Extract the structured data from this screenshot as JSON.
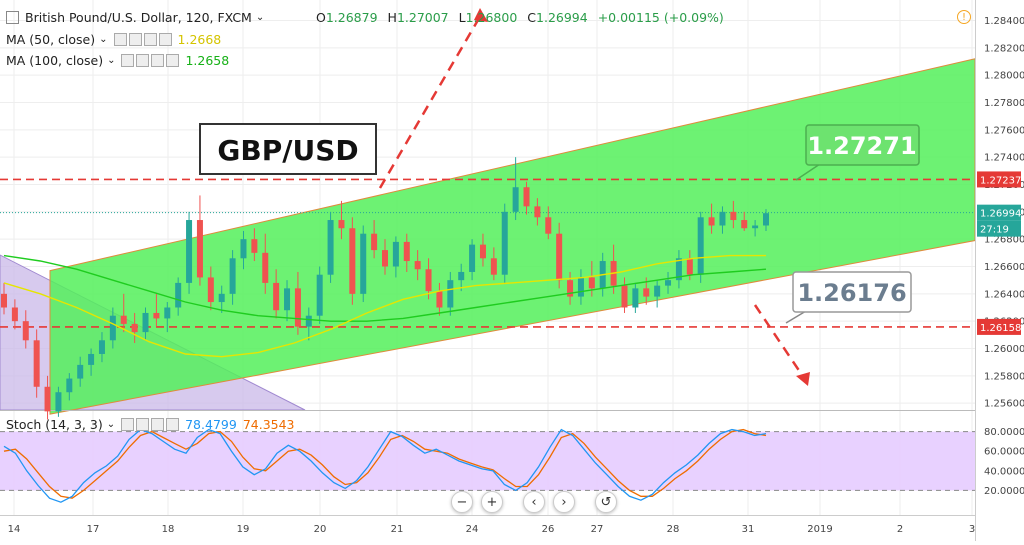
{
  "header": {
    "symbol": "British Pound/U.S. Dollar, 120, FXCM",
    "open_label": "O",
    "open": "1.26879",
    "high_label": "H",
    "high": "1.27007",
    "low_label": "L",
    "low": "1.26800",
    "close_label": "C",
    "close": "1.26994",
    "change": "+0.00115 (+0.09%)"
  },
  "indicators": [
    {
      "label": "MA (50, close)",
      "value": "1.2668",
      "color": "#e6e600"
    },
    {
      "label": "MA (100, close)",
      "value": "1.2658",
      "color": "#1fcc1f"
    }
  ],
  "annotations": {
    "title_box": "GBP/USD",
    "resistance_label": "1.27271",
    "support_label": "1.26176"
  },
  "price_tags": {
    "resistance": "1.27237",
    "current": "1.26994",
    "countdown": "27:19",
    "support": "1.26158"
  },
  "stoch": {
    "label": "Stoch (14, 3, 3)",
    "k_value": "78.4799",
    "d_value": "74.3543",
    "k_color": "#2196f3",
    "d_color": "#ef6c00"
  },
  "colors": {
    "up": "#26a69a",
    "down": "#ef5350",
    "channel": "#54f05a",
    "resistance_line": "#e53935",
    "stoch_band": "#e6ccff"
  },
  "nav_buttons": [
    "−",
    "+",
    "‹",
    "›",
    "↺"
  ],
  "chart_data": {
    "type": "candlestick",
    "price_axis_ticks": [
      "1.28400",
      "1.28200",
      "1.28000",
      "1.27800",
      "1.27600",
      "1.27400",
      "1.27200",
      "1.27000",
      "1.26800",
      "1.26600",
      "1.26400",
      "1.26200",
      "1.26000",
      "1.25800",
      "1.25600"
    ],
    "stoch_axis_ticks": [
      "80.0000",
      "60.0000",
      "40.0000",
      "20.0000"
    ],
    "x_ticks": [
      "14",
      "17",
      "18",
      "19",
      "20",
      "21",
      "24",
      "26",
      "27",
      "28",
      "31",
      "2019",
      "2",
      "3"
    ],
    "levels": {
      "resistance": 1.27237,
      "support": 1.26158,
      "current": 1.26994
    },
    "channel": {
      "upper_start": 1.2657,
      "upper_end": 1.2812,
      "lower_start": 1.2552,
      "lower_end": 1.2679
    },
    "ylim": [
      1.2555,
      1.2855
    ],
    "candles": [
      [
        1.264,
        1.2648,
        1.2625,
        1.263
      ],
      [
        1.263,
        1.2636,
        1.2614,
        1.262
      ],
      [
        1.262,
        1.2628,
        1.26,
        1.2606
      ],
      [
        1.2606,
        1.2614,
        1.2564,
        1.2572
      ],
      [
        1.2572,
        1.258,
        1.2548,
        1.2554
      ],
      [
        1.2554,
        1.2572,
        1.255,
        1.2568
      ],
      [
        1.2568,
        1.2582,
        1.2562,
        1.2578
      ],
      [
        1.2578,
        1.2594,
        1.2572,
        1.2588
      ],
      [
        1.2588,
        1.26,
        1.258,
        1.2596
      ],
      [
        1.2596,
        1.2612,
        1.259,
        1.2606
      ],
      [
        1.2606,
        1.263,
        1.26,
        1.2624
      ],
      [
        1.2624,
        1.264,
        1.2612,
        1.2618
      ],
      [
        1.2618,
        1.2626,
        1.2604,
        1.2612
      ],
      [
        1.2612,
        1.263,
        1.2606,
        1.2626
      ],
      [
        1.2626,
        1.264,
        1.2616,
        1.2622
      ],
      [
        1.2622,
        1.2634,
        1.2612,
        1.263
      ],
      [
        1.263,
        1.2652,
        1.2624,
        1.2648
      ],
      [
        1.2648,
        1.27,
        1.264,
        1.2694
      ],
      [
        1.2694,
        1.2712,
        1.2646,
        1.2652
      ],
      [
        1.2652,
        1.266,
        1.2628,
        1.2634
      ],
      [
        1.2634,
        1.2646,
        1.2626,
        1.264
      ],
      [
        1.264,
        1.2672,
        1.2632,
        1.2666
      ],
      [
        1.2666,
        1.2686,
        1.2658,
        1.268
      ],
      [
        1.268,
        1.2688,
        1.2664,
        1.267
      ],
      [
        1.267,
        1.2684,
        1.264,
        1.2648
      ],
      [
        1.2648,
        1.2658,
        1.2622,
        1.2628
      ],
      [
        1.2628,
        1.265,
        1.262,
        1.2644
      ],
      [
        1.2644,
        1.2656,
        1.261,
        1.2616
      ],
      [
        1.2616,
        1.263,
        1.2606,
        1.2624
      ],
      [
        1.2624,
        1.266,
        1.2618,
        1.2654
      ],
      [
        1.2654,
        1.27,
        1.2648,
        1.2694
      ],
      [
        1.2694,
        1.2708,
        1.268,
        1.2688
      ],
      [
        1.2688,
        1.2696,
        1.2632,
        1.264
      ],
      [
        1.264,
        1.269,
        1.2634,
        1.2684
      ],
      [
        1.2684,
        1.2694,
        1.2666,
        1.2672
      ],
      [
        1.2672,
        1.268,
        1.2654,
        1.266
      ],
      [
        1.266,
        1.2682,
        1.2652,
        1.2678
      ],
      [
        1.2678,
        1.2684,
        1.2656,
        1.2664
      ],
      [
        1.2664,
        1.2672,
        1.265,
        1.2658
      ],
      [
        1.2658,
        1.2666,
        1.2636,
        1.2642
      ],
      [
        1.2642,
        1.2648,
        1.2624,
        1.263
      ],
      [
        1.263,
        1.2656,
        1.2624,
        1.265
      ],
      [
        1.265,
        1.2662,
        1.2642,
        1.2656
      ],
      [
        1.2656,
        1.268,
        1.265,
        1.2676
      ],
      [
        1.2676,
        1.2684,
        1.266,
        1.2666
      ],
      [
        1.2666,
        1.2674,
        1.265,
        1.2654
      ],
      [
        1.2654,
        1.2706,
        1.2648,
        1.27
      ],
      [
        1.27,
        1.274,
        1.2694,
        1.2718
      ],
      [
        1.2718,
        1.2722,
        1.2698,
        1.2704
      ],
      [
        1.2704,
        1.271,
        1.269,
        1.2696
      ],
      [
        1.2696,
        1.2704,
        1.268,
        1.2684
      ],
      [
        1.2684,
        1.2692,
        1.2644,
        1.265
      ],
      [
        1.265,
        1.2656,
        1.2632,
        1.2638
      ],
      [
        1.2638,
        1.2658,
        1.2632,
        1.2652
      ],
      [
        1.2652,
        1.2664,
        1.2638,
        1.2644
      ],
      [
        1.2644,
        1.267,
        1.2638,
        1.2664
      ],
      [
        1.2664,
        1.2676,
        1.264,
        1.2646
      ],
      [
        1.2646,
        1.2652,
        1.2626,
        1.263
      ],
      [
        1.263,
        1.2648,
        1.2626,
        1.2644
      ],
      [
        1.2644,
        1.2652,
        1.2632,
        1.2638
      ],
      [
        1.2638,
        1.265,
        1.263,
        1.2646
      ],
      [
        1.2646,
        1.2656,
        1.264,
        1.265
      ],
      [
        1.265,
        1.2672,
        1.2644,
        1.2666
      ],
      [
        1.2666,
        1.2672,
        1.265,
        1.2654
      ],
      [
        1.2654,
        1.27,
        1.2648,
        1.2696
      ],
      [
        1.2696,
        1.2706,
        1.2684,
        1.269
      ],
      [
        1.269,
        1.2704,
        1.2684,
        1.27
      ],
      [
        1.27,
        1.2708,
        1.2688,
        1.2694
      ],
      [
        1.2694,
        1.27,
        1.2686,
        1.2688
      ],
      [
        1.2688,
        1.2694,
        1.2682,
        1.269
      ],
      [
        1.269,
        1.2702,
        1.2686,
        1.2699
      ]
    ],
    "ma50": [
      1.2648,
      1.264,
      1.263,
      1.2618,
      1.2605,
      1.2596,
      1.2594,
      1.2597,
      1.2604,
      1.2614,
      1.2626,
      1.2636,
      1.2642,
      1.2646,
      1.2648,
      1.265,
      1.2652,
      1.2656,
      1.2662,
      1.2666,
      1.2668,
      1.2668
    ],
    "ma100": [
      1.2668,
      1.2664,
      1.2658,
      1.265,
      1.2642,
      1.2634,
      1.2628,
      1.2624,
      1.2622,
      1.262,
      1.262,
      1.2622,
      1.2626,
      1.263,
      1.2634,
      1.2638,
      1.2642,
      1.2646,
      1.265,
      1.2654,
      1.2656,
      1.2658
    ],
    "stoch_k": [
      65,
      58,
      40,
      25,
      12,
      8,
      14,
      28,
      38,
      45,
      55,
      72,
      82,
      78,
      70,
      62,
      58,
      74,
      82,
      78,
      60,
      44,
      36,
      42,
      58,
      66,
      60,
      50,
      38,
      28,
      22,
      30,
      44,
      62,
      80,
      75,
      66,
      58,
      62,
      56,
      50,
      46,
      42,
      40,
      26,
      20,
      28,
      44,
      64,
      82,
      76,
      62,
      48,
      36,
      24,
      14,
      10,
      16,
      28,
      38,
      46,
      56,
      68,
      78,
      82,
      80,
      76,
      78
    ],
    "stoch_d": [
      60,
      62,
      52,
      38,
      24,
      14,
      12,
      20,
      30,
      40,
      50,
      64,
      76,
      80,
      74,
      68,
      62,
      68,
      78,
      80,
      70,
      54,
      42,
      40,
      50,
      60,
      62,
      56,
      46,
      34,
      26,
      28,
      38,
      54,
      72,
      76,
      70,
      62,
      60,
      58,
      52,
      48,
      44,
      41,
      32,
      24,
      24,
      36,
      54,
      74,
      78,
      68,
      54,
      42,
      30,
      20,
      14,
      14,
      22,
      32,
      40,
      50,
      62,
      72,
      80,
      82,
      78,
      76
    ]
  }
}
